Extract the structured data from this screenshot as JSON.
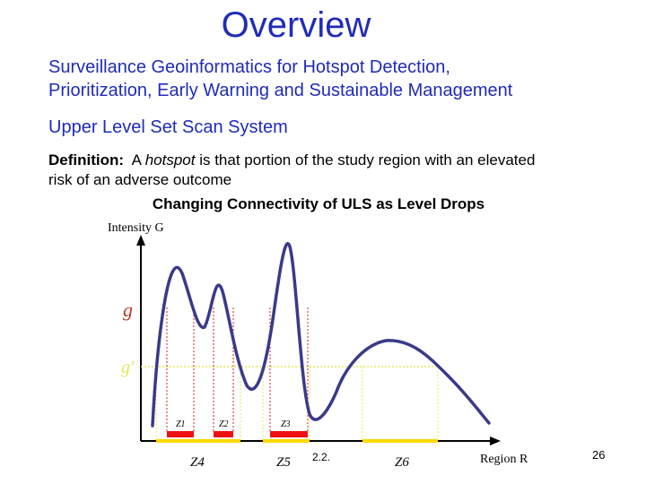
{
  "slide": {
    "title": "Overview",
    "line1": "Surveillance Geoinformatics for Hotspot Detection,",
    "line2": "Prioritization, Early Warning and Sustainable Management",
    "line3": "Upper Level Set Scan System",
    "definition": {
      "label": "Definition:",
      "pre": "A",
      "term": "hotspot",
      "rest": "is that portion of the study region with an elevated",
      "line2": "risk of an adverse outcome"
    },
    "diagram_title": "Changing Connectivity of ULS as Level Drops",
    "page_number": "26",
    "stray_text": "2.2."
  },
  "diagram": {
    "y_axis_label": "Intensity G",
    "x_axis_label": "Region R",
    "level_g": "g",
    "level_g_prime": "g'",
    "small_zones": [
      "Z1",
      "Z2",
      "Z3"
    ],
    "large_zones": [
      "Z4",
      "Z5",
      "Z6"
    ],
    "colors": {
      "curve": "#3a3a8a",
      "level_label": "#c0392b",
      "zone_bar": "#ee1111",
      "lower_bar": "#ffd700",
      "guide_red": "#d02020",
      "guide_yellow": "#e6e65a"
    }
  }
}
